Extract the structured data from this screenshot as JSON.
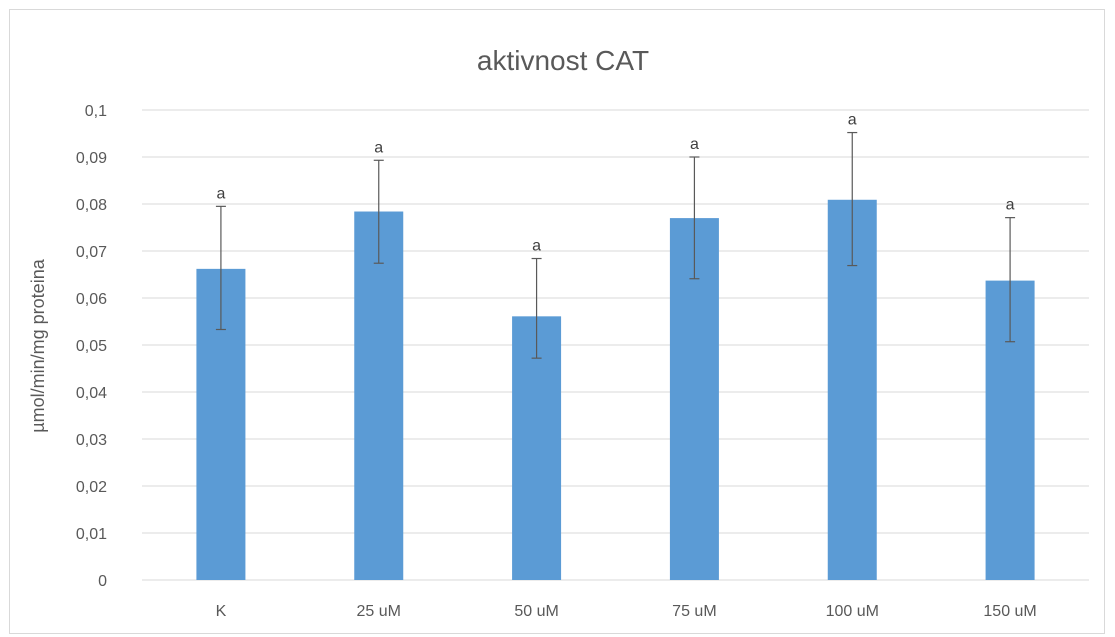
{
  "chart_data": {
    "type": "bar",
    "title": "aktivnost CAT",
    "xlabel": "",
    "ylabel": "µmol/min/mg proteina",
    "ylim": [
      0,
      0.1
    ],
    "ytick_step": 0.01,
    "ytick_labels": [
      "0",
      "0,01",
      "0,02",
      "0,03",
      "0,04",
      "0,05",
      "0,06",
      "0,07",
      "0,08",
      "0,09",
      "0,1"
    ],
    "categories": [
      "K",
      "25 uM",
      "50 uM",
      "75 uM",
      "100 uM",
      "150 uM"
    ],
    "values": [
      0.0662,
      0.0784,
      0.0561,
      0.077,
      0.0809,
      0.0637
    ],
    "error_low": [
      0.0533,
      0.0674,
      0.0472,
      0.0641,
      0.0669,
      0.0507
    ],
    "error_high": [
      0.0795,
      0.0893,
      0.0684,
      0.09,
      0.0952,
      0.0771
    ],
    "data_labels": [
      "a",
      "a",
      "a",
      "a",
      "a",
      "a"
    ],
    "grid": true,
    "bar_color": "#5b9bd5",
    "grid_color": "#d9d9d9",
    "error_color": "#595959"
  }
}
